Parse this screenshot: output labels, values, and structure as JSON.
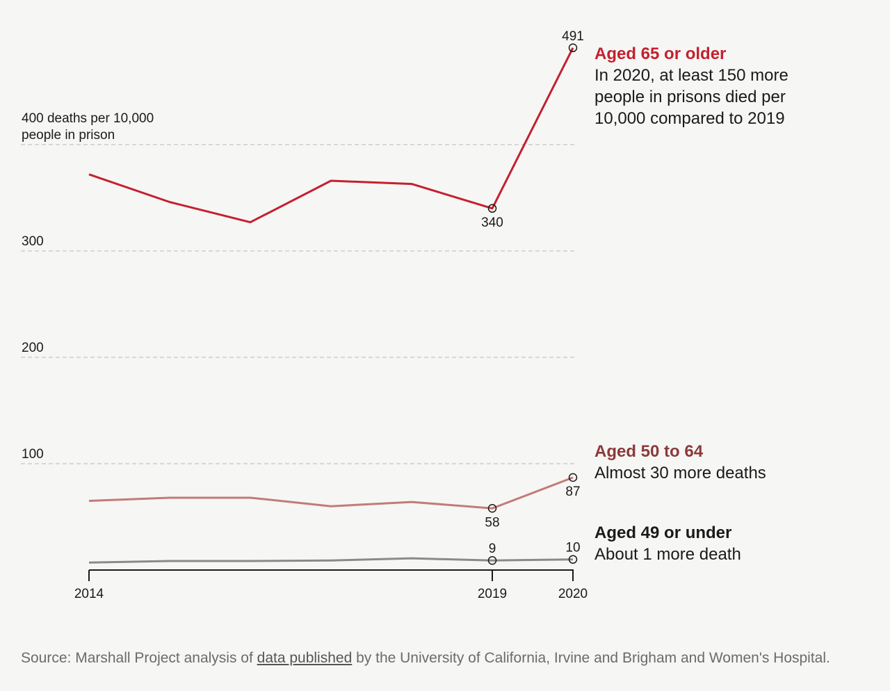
{
  "chart_data": {
    "type": "line",
    "x": [
      2014,
      2015,
      2016,
      2017,
      2018,
      2019,
      2020
    ],
    "xticks": [
      "2014",
      "2019",
      "2020"
    ],
    "ylim": [
      0,
      500
    ],
    "yticks": [
      {
        "value": 100,
        "label": "100"
      },
      {
        "value": 200,
        "label": "200"
      },
      {
        "value": 300,
        "label": "300"
      },
      {
        "value": 400,
        "label": "400 deaths per 10,000",
        "label2": "people in prison"
      }
    ],
    "grid": true,
    "series": [
      {
        "name": "Aged 65 or older",
        "color": "#c4202f",
        "values": [
          372,
          346,
          327,
          366,
          363,
          340,
          491
        ],
        "labels": [
          {
            "index": 5,
            "text": "340",
            "pos": "below"
          },
          {
            "index": 6,
            "text": "491",
            "pos": "above"
          }
        ],
        "title": "Aged 65 or older",
        "note": [
          "In 2020, at least 150 more",
          "people in prisons died per",
          "10,000 compared to 2019"
        ]
      },
      {
        "name": "Aged 50 to 64",
        "color": "#c27b78",
        "titleColor": "#8b3a3a",
        "values": [
          65,
          68,
          68,
          60,
          64,
          58,
          87
        ],
        "labels": [
          {
            "index": 5,
            "text": "58",
            "pos": "below"
          },
          {
            "index": 6,
            "text": "87",
            "pos": "below"
          }
        ],
        "title": "Aged 50 to 64",
        "note": [
          "Almost 30 more deaths"
        ]
      },
      {
        "name": "Aged 49 or under",
        "color": "#8a8a8a",
        "titleColor": "#1a1a1a",
        "values": [
          7,
          8.5,
          8.5,
          9,
          11,
          9,
          10
        ],
        "labels": [
          {
            "index": 5,
            "text": "9",
            "pos": "above"
          },
          {
            "index": 6,
            "text": "10",
            "pos": "above"
          }
        ],
        "title": "Aged 49 or under",
        "note": [
          "About 1 more death"
        ]
      }
    ]
  },
  "source": {
    "prefix": "Source: Marshall Project analysis of ",
    "link": "data published",
    "suffix": " by the University of California, Irvine and Brigham and Women's Hospital."
  }
}
